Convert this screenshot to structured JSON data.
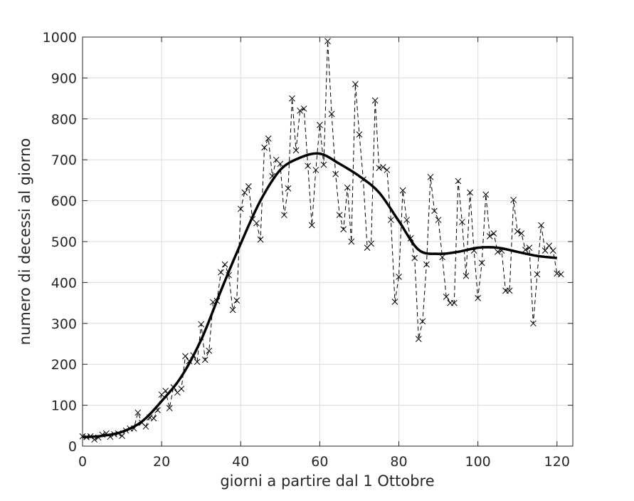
{
  "chart_data": {
    "type": "line",
    "xlabel": "giorni a partire dal 1 Ottobre",
    "ylabel": "numero di decessi al giorno",
    "xlim": [
      0,
      124
    ],
    "ylim": [
      0,
      1000
    ],
    "xticks": [
      0,
      20,
      40,
      60,
      80,
      100,
      120
    ],
    "yticks": [
      0,
      100,
      200,
      300,
      400,
      500,
      600,
      700,
      800,
      900,
      1000
    ],
    "grid": true,
    "colors": {
      "series": "#000000",
      "grid": "#dcdcdc",
      "axis": "#262626"
    },
    "series": [
      {
        "style": "dashed line with x markers",
        "x": [
          0,
          1,
          2,
          3,
          4,
          5,
          6,
          7,
          8,
          9,
          10,
          11,
          12,
          13,
          14,
          15,
          16,
          17,
          18,
          19,
          20,
          21,
          22,
          23,
          24,
          25,
          26,
          27,
          28,
          29,
          30,
          31,
          32,
          33,
          34,
          35,
          36,
          37,
          38,
          39,
          40,
          41,
          42,
          43,
          44,
          45,
          46,
          47,
          48,
          49,
          50,
          51,
          52,
          53,
          54,
          55,
          56,
          57,
          58,
          59,
          60,
          61,
          62,
          63,
          64,
          65,
          66,
          67,
          68,
          69,
          70,
          71,
          72,
          73,
          74,
          75,
          76,
          77,
          78,
          79,
          80,
          81,
          82,
          83,
          84,
          85,
          86,
          87,
          88,
          89,
          90,
          91,
          92,
          93,
          94,
          95,
          96,
          97,
          98,
          99,
          100,
          101,
          102,
          103,
          104,
          105,
          106,
          107,
          108,
          109,
          110,
          111,
          112,
          113,
          114,
          115,
          116,
          117,
          118,
          119,
          120,
          121
        ],
        "y": [
          24,
          22,
          24,
          16,
          21,
          28,
          31,
          23,
          29,
          31,
          25,
          38,
          43,
          43,
          82,
          57,
          48,
          70,
          68,
          88,
          126,
          135,
          93,
          144,
          131,
          140,
          220,
          208,
          222,
          206,
          298,
          211,
          233,
          352,
          355,
          425,
          444,
          418,
          333,
          356,
          580,
          620,
          635,
          555,
          545,
          505,
          730,
          752,
          660,
          700,
          690,
          565,
          630,
          850,
          723,
          820,
          825,
          685,
          540,
          675,
          785,
          688,
          990,
          812,
          665,
          565,
          530,
          632,
          500,
          885,
          762,
          652,
          485,
          495,
          845,
          680,
          682,
          675,
          553,
          353,
          414,
          625,
          553,
          508,
          460,
          262,
          305,
          444,
          658,
          575,
          553,
          462,
          365,
          350,
          350,
          648,
          548,
          416,
          620,
          478,
          362,
          448,
          615,
          513,
          520,
          475,
          478,
          380,
          380,
          602,
          525,
          520,
          480,
          485,
          300,
          420,
          540,
          478,
          490,
          478,
          422,
          420
        ]
      },
      {
        "style": "thick solid trend line",
        "x": [
          0,
          5,
          10,
          15,
          20,
          25,
          30,
          35,
          40,
          45,
          50,
          55,
          60,
          65,
          70,
          75,
          80,
          85,
          90,
          95,
          100,
          105,
          110,
          115,
          120
        ],
        "y": [
          22,
          25,
          35,
          60,
          110,
          170,
          260,
          380,
          495,
          600,
          675,
          705,
          715,
          690,
          660,
          620,
          550,
          480,
          470,
          475,
          485,
          485,
          475,
          465,
          460
        ]
      }
    ]
  }
}
